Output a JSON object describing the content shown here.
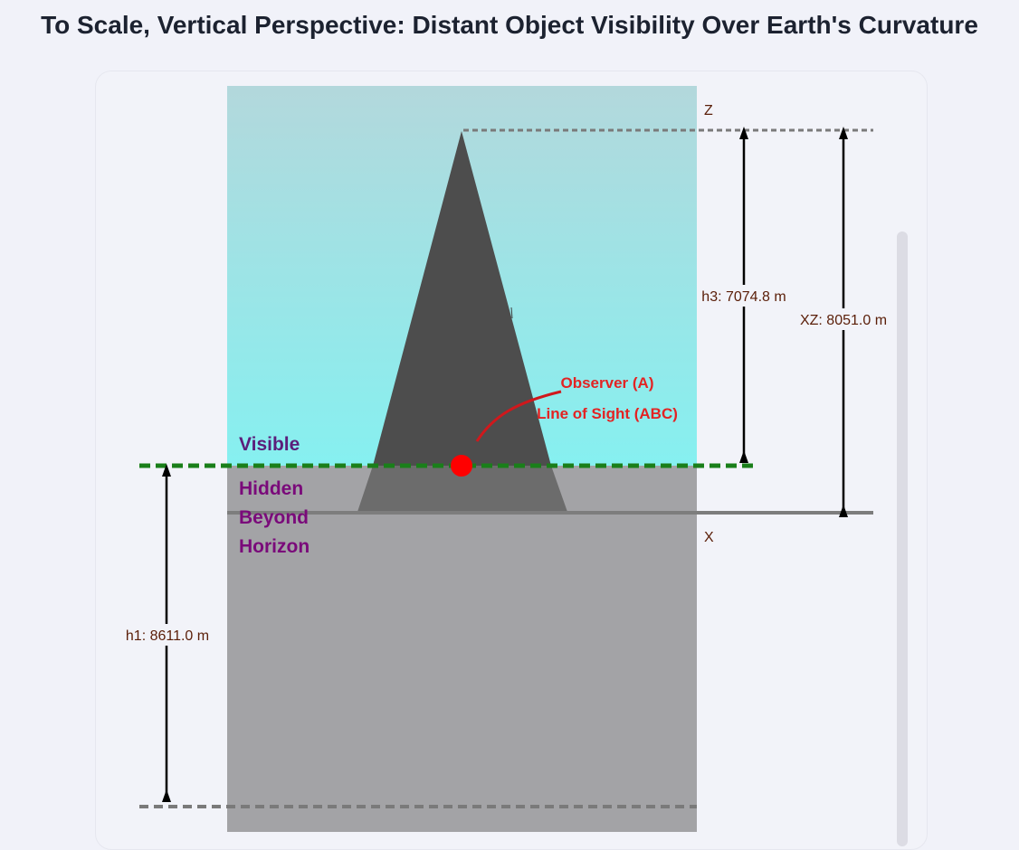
{
  "title": "To Scale, Vertical Perspective: Distant Object Visibility Over Earth's Curvature",
  "labels": {
    "z": "Z",
    "x": "X",
    "h3": "h3: 7074.8 m",
    "xz": "XZ: 8051.0 m",
    "h1": "h1: 8611.0 m",
    "observer": "Observer (A)",
    "line_of_sight": "Line of Sight (ABC)",
    "visible": "Visible",
    "hidden_line1": "Hidden",
    "hidden_line2": "Beyond",
    "hidden_line3": "Horizon"
  },
  "colors": {
    "sky_top": "#b3d8dc",
    "sky_bottom": "#86f0f0",
    "hidden_area": "#a3a3a6",
    "mountain": "#4d4d4d",
    "mountain_hidden": "#6c6c6c",
    "line_of_sight": "#1a7f1a",
    "observer": "#ff0000",
    "annotation_red": "#e32323",
    "visible_text": "#5b1e7a",
    "hidden_text": "#7a0a7a",
    "dim_text": "#5a1e08"
  }
}
